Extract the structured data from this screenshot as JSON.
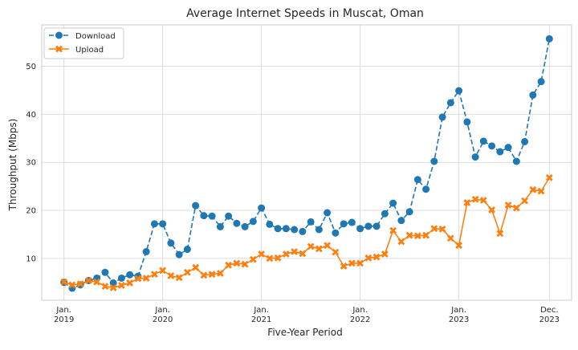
{
  "chart_data": {
    "type": "line",
    "title": "Average Internet Speeds in Muscat, Oman",
    "xlabel": "Five-Year Period",
    "ylabel": "Throughput (Mbps)",
    "x_ticks": [
      {
        "line1": "Jan.",
        "line2": "2019",
        "month_index": 0
      },
      {
        "line1": "Jan.",
        "line2": "2020",
        "month_index": 12
      },
      {
        "line1": "Jan.",
        "line2": "2021",
        "month_index": 24
      },
      {
        "line1": "Jan.",
        "line2": "2022",
        "month_index": 36
      },
      {
        "line1": "Jan.",
        "line2": "2023",
        "month_index": 48
      },
      {
        "line1": "Dec.",
        "line2": "2023",
        "month_index": 59
      }
    ],
    "xlim": [
      -2.7,
      61.7
    ],
    "ylim": [
      1.3,
      58.6
    ],
    "y_ticks": [
      10,
      20,
      30,
      40,
      50
    ],
    "grid": true,
    "legend_position": "top-left",
    "series": [
      {
        "name": "Download",
        "color": "#1f77b4",
        "linestyle": "dashed",
        "marker": "circle",
        "values": [
          5.0,
          3.8,
          4.5,
          5.4,
          5.9,
          7.1,
          4.9,
          5.9,
          6.6,
          6.3,
          11.4,
          17.2,
          17.2,
          13.2,
          10.8,
          11.9,
          21.0,
          18.9,
          18.8,
          16.6,
          18.8,
          17.3,
          16.6,
          17.7,
          20.5,
          17.1,
          16.2,
          16.2,
          16.0,
          15.6,
          17.6,
          16.0,
          19.5,
          15.3,
          17.2,
          17.5,
          16.2,
          16.7,
          16.7,
          19.3,
          21.5,
          17.9,
          19.7,
          26.4,
          24.4,
          30.2,
          39.4,
          42.4,
          44.9,
          38.4,
          31.1,
          34.4,
          33.4,
          32.2,
          33.1,
          30.2,
          34.3,
          44.0,
          46.8,
          55.7
        ]
      },
      {
        "name": "Upload",
        "color": "#ff7f0e",
        "linestyle": "solid",
        "marker": "x",
        "values": [
          5.1,
          4.5,
          4.7,
          5.4,
          5.1,
          4.2,
          3.9,
          4.4,
          4.9,
          5.8,
          5.9,
          6.7,
          7.5,
          6.4,
          6.0,
          7.1,
          8.1,
          6.5,
          6.7,
          6.9,
          8.6,
          9.0,
          8.8,
          9.8,
          10.9,
          10.0,
          10.1,
          10.9,
          11.4,
          11.0,
          12.5,
          12.0,
          12.7,
          11.3,
          8.4,
          9.0,
          9.0,
          10.1,
          10.3,
          10.9,
          15.8,
          13.5,
          14.8,
          14.7,
          14.8,
          16.2,
          16.1,
          14.2,
          12.7,
          21.6,
          22.3,
          22.1,
          20.1,
          15.2,
          21.1,
          20.5,
          22.0,
          24.3,
          24.0,
          26.8
        ]
      }
    ]
  }
}
